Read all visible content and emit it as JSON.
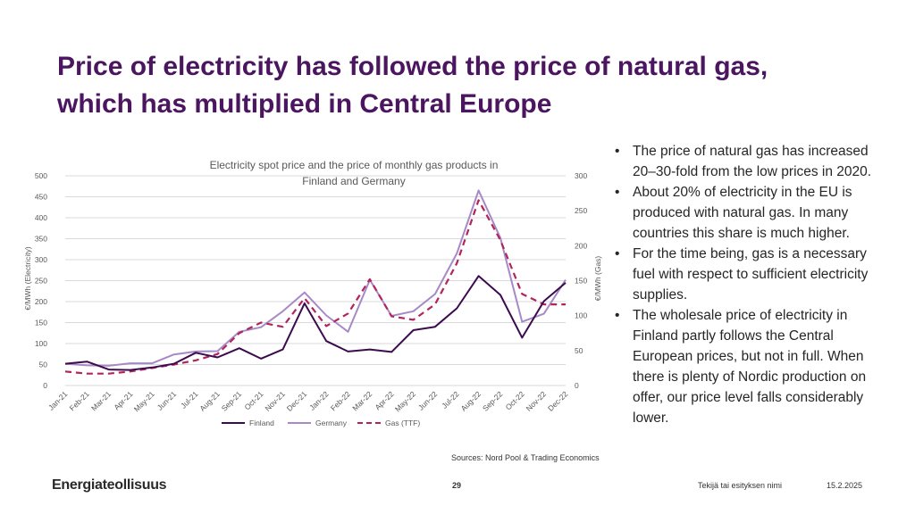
{
  "slide": {
    "title_line1": "Price of electricity has followed the price of natural gas,",
    "title_line2": "which has multiplied in Central Europe",
    "bullets": [
      "The price of natural gas has increased 20–30-fold from the low prices in 2020.",
      "About 20% of electricity in the EU is produced with natural gas. In many countries this share is much higher.",
      "For the time being, gas is a necessary fuel with respect to sufficient electricity supplies.",
      "The wholesale price of electricity in Finland partly follows the Central European prices, but not in full. When there is plenty of Nordic production on offer, our price level falls considerably lower."
    ],
    "sources": "Sources: Nord Pool & Trading Economics"
  },
  "footer": {
    "logo": "Energiateollisuus",
    "page_number": "29",
    "author": "Tekijä tai esityksen nimi",
    "date": "15.2.2025"
  },
  "colors": {
    "title": "#4b1560",
    "finland": "#3d0a4f",
    "germany": "#a68ac8",
    "gas": "#b0255c",
    "grid": "#d9d9d9"
  },
  "chart_data": {
    "type": "line",
    "title_line1": "Electricity spot price and the price of monthly gas products in",
    "title_line2": "Finland and Germany",
    "categories": [
      "Jan-21",
      "Feb-21",
      "Mar-21",
      "Apr-21",
      "May-21",
      "Jun-21",
      "Jul-21",
      "Aug-21",
      "Sep-21",
      "Oct-21",
      "Nov-21",
      "Dec-21",
      "Jan-22",
      "Feb-22",
      "Mar-22",
      "Apr-22",
      "May-22",
      "Jun-22",
      "Jul-22",
      "Aug-22",
      "Sep-22",
      "Oct-22",
      "Nov-22",
      "Dec-22"
    ],
    "ylabel_left": "€/MWh (Electricity)",
    "ylabel_right": "€/MWh (Gas)",
    "ylim_left": [
      0,
      500
    ],
    "ylim_right": [
      0,
      300
    ],
    "yticks_left": [
      "0",
      "50",
      "100",
      "150",
      "200",
      "250",
      "300",
      "350",
      "400",
      "450",
      "500"
    ],
    "yticks_right": [
      "0",
      "50",
      "100",
      "150",
      "200",
      "250",
      "300"
    ],
    "series": [
      {
        "name": "Finland",
        "axis": "left",
        "style": "solid",
        "values": [
          52,
          57,
          38,
          37,
          43,
          52,
          78,
          67,
          89,
          64,
          86,
          196,
          106,
          81,
          86,
          80,
          132,
          140,
          184,
          261,
          216,
          114,
          201,
          245
        ]
      },
      {
        "name": "Germany",
        "axis": "left",
        "style": "solid",
        "values": [
          52,
          48,
          47,
          53,
          53,
          74,
          81,
          82,
          128,
          139,
          177,
          222,
          167,
          128,
          252,
          166,
          177,
          218,
          315,
          465,
          352,
          152,
          171,
          252
        ]
      },
      {
        "name": "Gas (TTF)",
        "axis": "right",
        "style": "dashed",
        "values": [
          20,
          17,
          17,
          20,
          25,
          30,
          36,
          45,
          75,
          90,
          84,
          125,
          85,
          103,
          152,
          99,
          94,
          116,
          175,
          265,
          208,
          131,
          116,
          116
        ]
      }
    ],
    "legend": "bottom"
  }
}
